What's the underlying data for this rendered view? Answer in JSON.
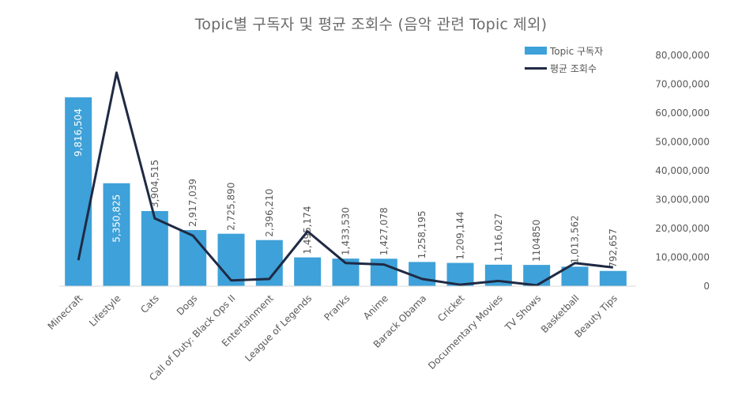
{
  "chart_data": {
    "type": "bar",
    "title": "Topic별 구독자 및 평균 조회수 (음악 관련 Topic 제외)",
    "categories": [
      "Minecraft",
      "Lifestyle",
      "Cats",
      "Dogs",
      "Call of Duty: Black Ops II",
      "Entertainment",
      "League of Legends",
      "Pranks",
      "Anime",
      "Barack Obama",
      "Cricket",
      "Documentary Movies",
      "TV Shows",
      "Basketball",
      "Beauty Tips"
    ],
    "series": [
      {
        "name": "Topic 구독자",
        "type": "bar",
        "color": "#3ea1d9",
        "values": [
          9816504,
          5350825,
          3904515,
          2917039,
          2725890,
          2396210,
          1495174,
          1433530,
          1427078,
          1258195,
          1209144,
          1116027,
          1104850,
          1013562,
          792657
        ],
        "labels": [
          "9,816,504",
          "5,350,825",
          "3,904,515",
          "2,917,039",
          "2,725,890",
          "2,396,210",
          "1,495,174",
          "1,433,530",
          "1,427,078",
          "1,258,195",
          "1,209,144",
          "1,116,027",
          "1104850",
          "1,013,562",
          "792,657"
        ]
      },
      {
        "name": "평균 조회수",
        "type": "line",
        "color": "#1f2a44",
        "axis": "right",
        "values": [
          9000000,
          74000000,
          23500000,
          17500000,
          2000000,
          2500000,
          19000000,
          8000000,
          7500000,
          2500000,
          500000,
          1800000,
          300000,
          8000000,
          6500000
        ]
      }
    ],
    "y_right": {
      "ylim": [
        0,
        80000000
      ],
      "ticks": [
        "0",
        "10,000,000",
        "20,000,000",
        "30,000,000",
        "40,000,000",
        "50,000,000",
        "60,000,000",
        "70,000,000",
        "80,000,000"
      ]
    },
    "y_left": {
      "ylim": [
        0,
        12000000
      ],
      "visible": false
    },
    "grid": false,
    "legend": "top-right"
  }
}
